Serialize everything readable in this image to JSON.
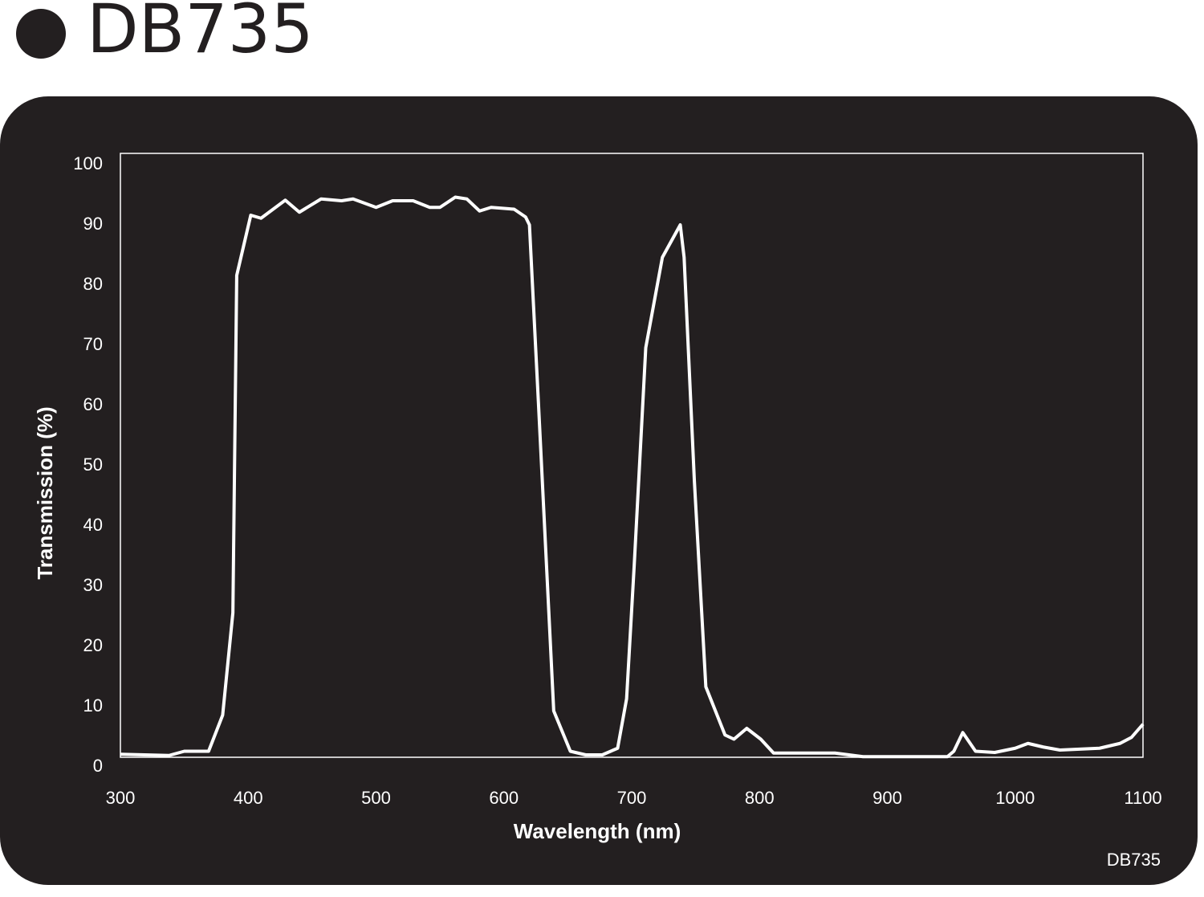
{
  "chart_data": {
    "type": "line",
    "title": "DB735",
    "xlabel": "Wavelength (nm)",
    "ylabel": "Transmission (%)",
    "note": "DB735",
    "x": [
      300,
      338,
      350,
      369,
      380,
      388,
      391,
      402,
      410,
      429,
      440,
      457,
      473,
      482,
      500,
      513,
      529,
      542,
      550,
      562,
      571,
      581,
      590,
      608,
      617,
      620,
      627,
      639,
      652,
      664,
      677,
      689,
      696,
      702,
      711,
      724,
      738,
      741,
      749,
      758,
      773,
      780,
      790,
      801,
      811,
      859,
      881,
      947,
      952,
      959,
      969,
      984,
      1000,
      1010,
      1022,
      1035,
      1066,
      1082,
      1091,
      1100
    ],
    "values": [
      0.5,
      0.3,
      1,
      1,
      7,
      24,
      80,
      90,
      89.5,
      92.5,
      90.5,
      92.7,
      92.4,
      92.7,
      91.3,
      92.4,
      92.4,
      91.3,
      91.3,
      93,
      92.7,
      90.7,
      91.3,
      91,
      89.7,
      88.4,
      59,
      7.7,
      1,
      0.4,
      0.4,
      1.5,
      9.7,
      32,
      68,
      83,
      88.4,
      83,
      46,
      11.7,
      3.7,
      3,
      4.8,
      3,
      0.7,
      0.7,
      0.1,
      0.1,
      1,
      4.1,
      1,
      0.8,
      1.5,
      2.3,
      1.7,
      1.2,
      1.5,
      2.3,
      3.3,
      5.5
    ],
    "color": "#ffffff",
    "xlim": [
      300,
      1100
    ],
    "xticks": [
      300,
      400,
      500,
      600,
      700,
      800,
      900,
      1000,
      1100
    ],
    "ylim": [
      0,
      100
    ],
    "yticks": [
      0,
      10,
      20,
      30,
      40,
      50,
      60,
      70,
      80,
      90,
      100
    ],
    "grid": false
  }
}
